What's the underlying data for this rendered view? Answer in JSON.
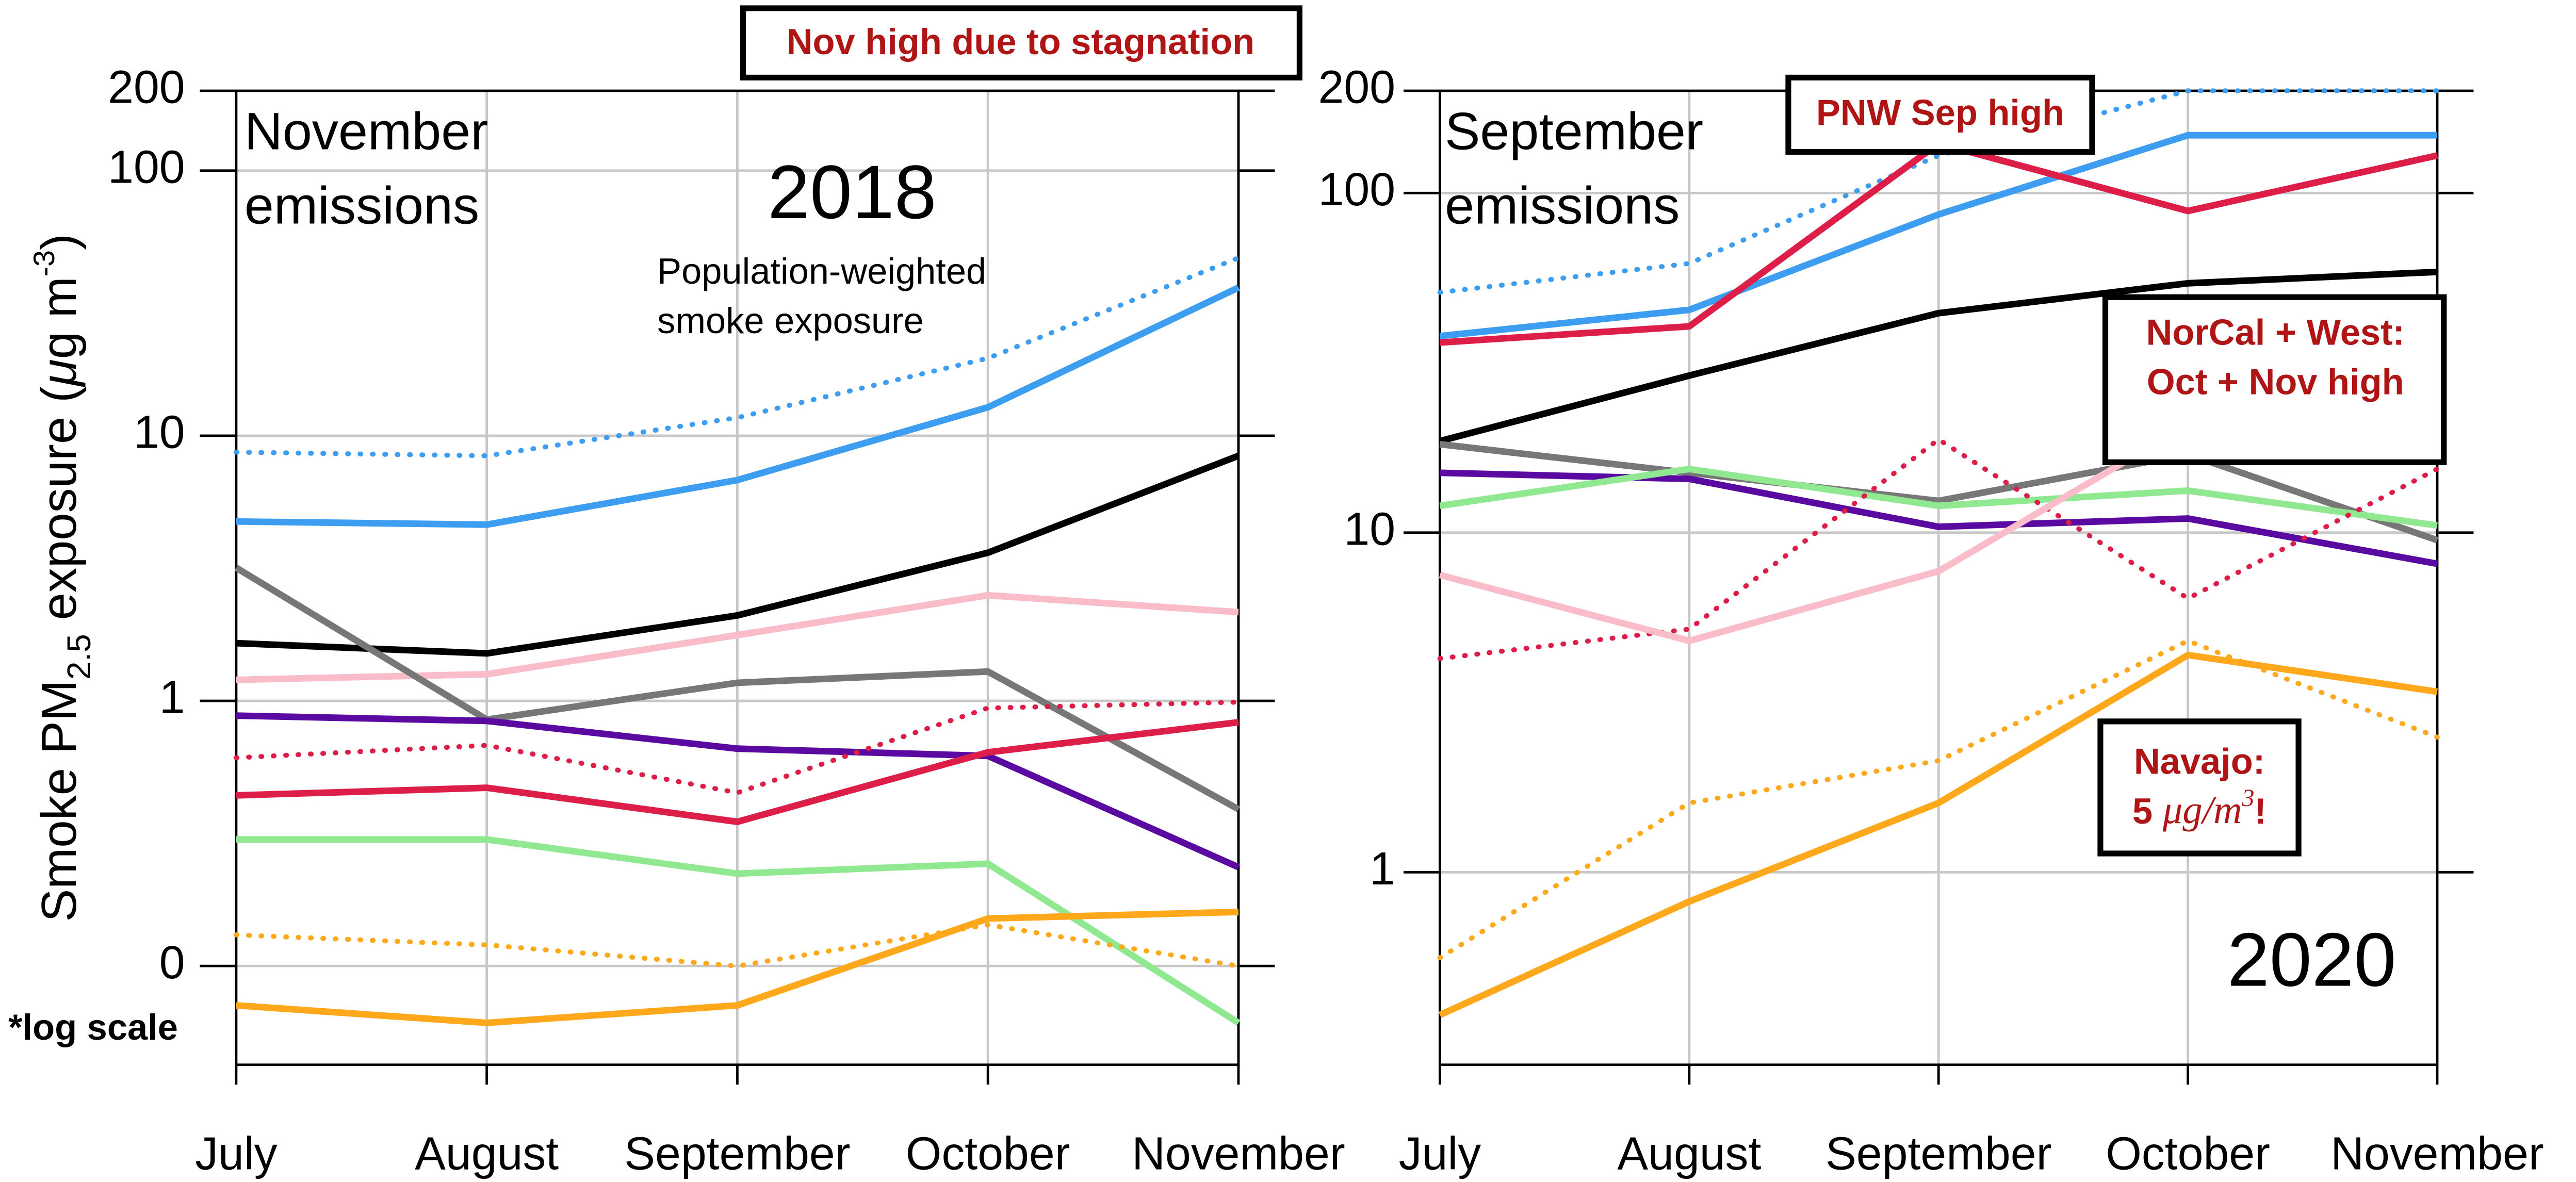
{
  "chart_data": [
    {
      "type": "line",
      "log": true,
      "grid": true,
      "categories": [
        "July",
        "August",
        "September",
        "October",
        "November"
      ],
      "ylim": [
        0.0424,
        200
      ],
      "yticks": [
        {
          "value": 0.1,
          "label": "0"
        },
        1,
        10,
        100,
        200
      ],
      "ylabel": [
        "Smoke PM",
        "2.5",
        " exposure (",
        "μ",
        "g m",
        "-3",
        ")"
      ],
      "title_lines": [
        "November",
        "emissions"
      ],
      "year": "2018",
      "subtitle_lines": [
        "Population-weighted",
        "smoke exposure"
      ],
      "notes": [
        {
          "lines": [
            "Nov high due to stagnation"
          ],
          "boxed": true
        },
        {
          "lines": [
            "*log scale"
          ],
          "boxed": false
        }
      ],
      "series": [
        {
          "color": "#3d9df0",
          "dotted": true,
          "values": [
            8.67,
            8.4,
            11.7,
            19.6,
            46.9
          ]
        },
        {
          "color": "#3d9df0",
          "dotted": false,
          "values": [
            4.75,
            4.62,
            6.8,
            12.8,
            36.2
          ]
        },
        {
          "color": "#000000",
          "dotted": false,
          "values": [
            1.65,
            1.51,
            2.1,
            3.62,
            8.4
          ]
        },
        {
          "color": "#f9bcc8",
          "dotted": false,
          "values": [
            1.2,
            1.26,
            1.77,
            2.5,
            2.16
          ]
        },
        {
          "color": "#777777",
          "dotted": false,
          "values": [
            3.18,
            0.85,
            1.17,
            1.29,
            0.39
          ]
        },
        {
          "color": "#5a0aa0",
          "dotted": false,
          "values": [
            0.88,
            0.84,
            0.66,
            0.62,
            0.236
          ]
        },
        {
          "color": "#dc1e48",
          "dotted": false,
          "values": [
            0.44,
            0.47,
            0.35,
            0.64,
            0.83
          ]
        },
        {
          "color": "#dc1e48",
          "dotted": true,
          "values": [
            0.61,
            0.68,
            0.45,
            0.94,
            0.99
          ]
        },
        {
          "color": "#90e890",
          "dotted": false,
          "values": [
            0.3,
            0.3,
            0.223,
            0.243,
            0.061
          ]
        },
        {
          "color": "#ffa81c",
          "dotted": true,
          "values": [
            0.131,
            0.12,
            0.1,
            0.143,
            0.1
          ]
        },
        {
          "color": "#ffa81c",
          "dotted": false,
          "values": [
            0.071,
            0.061,
            0.071,
            0.151,
            0.16
          ]
        }
      ]
    },
    {
      "type": "line",
      "log": true,
      "grid": true,
      "categories": [
        "July",
        "August",
        "September",
        "October",
        "November"
      ],
      "ylim": [
        0.271,
        200
      ],
      "yticks": [
        1,
        10,
        100,
        200
      ],
      "title_lines": [
        "September",
        "emissions"
      ],
      "year": "2020",
      "notes": [
        {
          "lines": [
            "PNW Sep high"
          ],
          "boxed": true
        },
        {
          "lines": [
            "NorCal + West:",
            "Oct + Nov high"
          ],
          "boxed": true
        },
        {
          "lines": [
            "Navajo:",
            [
              "5 ",
              "μg/m",
              "3",
              "!"
            ]
          ],
          "boxed": true
        }
      ],
      "series": [
        {
          "color": "#3d9df0",
          "dotted": true,
          "values": [
            51,
            62,
            129,
            200,
            200
          ]
        },
        {
          "color": "#3d9df0",
          "dotted": false,
          "values": [
            37.9,
            45.3,
            86.5,
            148,
            148
          ]
        },
        {
          "color": "#dc1e48",
          "dotted": false,
          "values": [
            36.3,
            40.5,
            140,
            88.5,
            129
          ]
        },
        {
          "color": "#000000",
          "dotted": false,
          "values": [
            18.6,
            29,
            44.3,
            54.2,
            58.6
          ]
        },
        {
          "color": "#777777",
          "dotted": false,
          "values": [
            18.2,
            15,
            12.4,
            17,
            9.5
          ]
        },
        {
          "color": "#5a0aa0",
          "dotted": false,
          "values": [
            15,
            14.4,
            10.4,
            11,
            8.1
          ]
        },
        {
          "color": "#90e890",
          "dotted": false,
          "values": [
            12,
            15.4,
            12,
            13.3,
            10.5
          ]
        },
        {
          "color": "#dc1e48",
          "dotted": true,
          "values": [
            4.26,
            5.2,
            18.8,
            6.4,
            15.4
          ]
        },
        {
          "color": "#f9bcc8",
          "dotted": false,
          "values": [
            7.5,
            4.8,
            7.7,
            20.8,
            19.2
          ]
        },
        {
          "color": "#ffa81c",
          "dotted": true,
          "values": [
            0.56,
            1.6,
            2.13,
            4.8,
            2.5
          ]
        },
        {
          "color": "#ffa81c",
          "dotted": false,
          "values": [
            0.38,
            0.82,
            1.6,
            4.36,
            3.4
          ]
        }
      ]
    }
  ]
}
